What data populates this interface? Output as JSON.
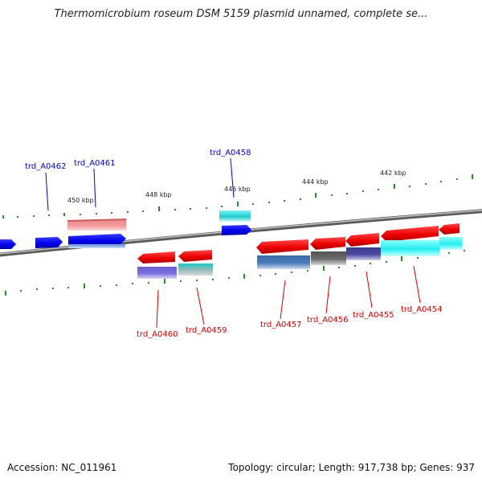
{
  "title": "Thermomicrobium roseum DSM 5159 plasmid unnamed, complete se...",
  "accession": "Accession: NC_011961",
  "summary": "Topology: circular; Length: 917,738 bp; Genes: 937",
  "colors": {
    "forward_label": "#0000cc",
    "reverse_label": "#cc0000",
    "backbone": "#808080",
    "tick": "#2a8a2a"
  },
  "ticks": [
    {
      "label": "450 kbp"
    },
    {
      "label": "448 kbp"
    },
    {
      "label": "446 kbp"
    },
    {
      "label": "444 kbp"
    },
    {
      "label": "442 kbp"
    }
  ],
  "gene_labels": [
    {
      "name": "trd_A0462",
      "strand": "forward"
    },
    {
      "name": "trd_A0461",
      "strand": "forward"
    },
    {
      "name": "trd_A0458",
      "strand": "forward"
    },
    {
      "name": "trd_A0460",
      "strand": "reverse"
    },
    {
      "name": "trd_A0459",
      "strand": "reverse"
    },
    {
      "name": "trd_A0457",
      "strand": "reverse"
    },
    {
      "name": "trd_A0456",
      "strand": "reverse"
    },
    {
      "name": "trd_A0455",
      "strand": "reverse"
    },
    {
      "name": "trd_A0454",
      "strand": "reverse"
    }
  ]
}
